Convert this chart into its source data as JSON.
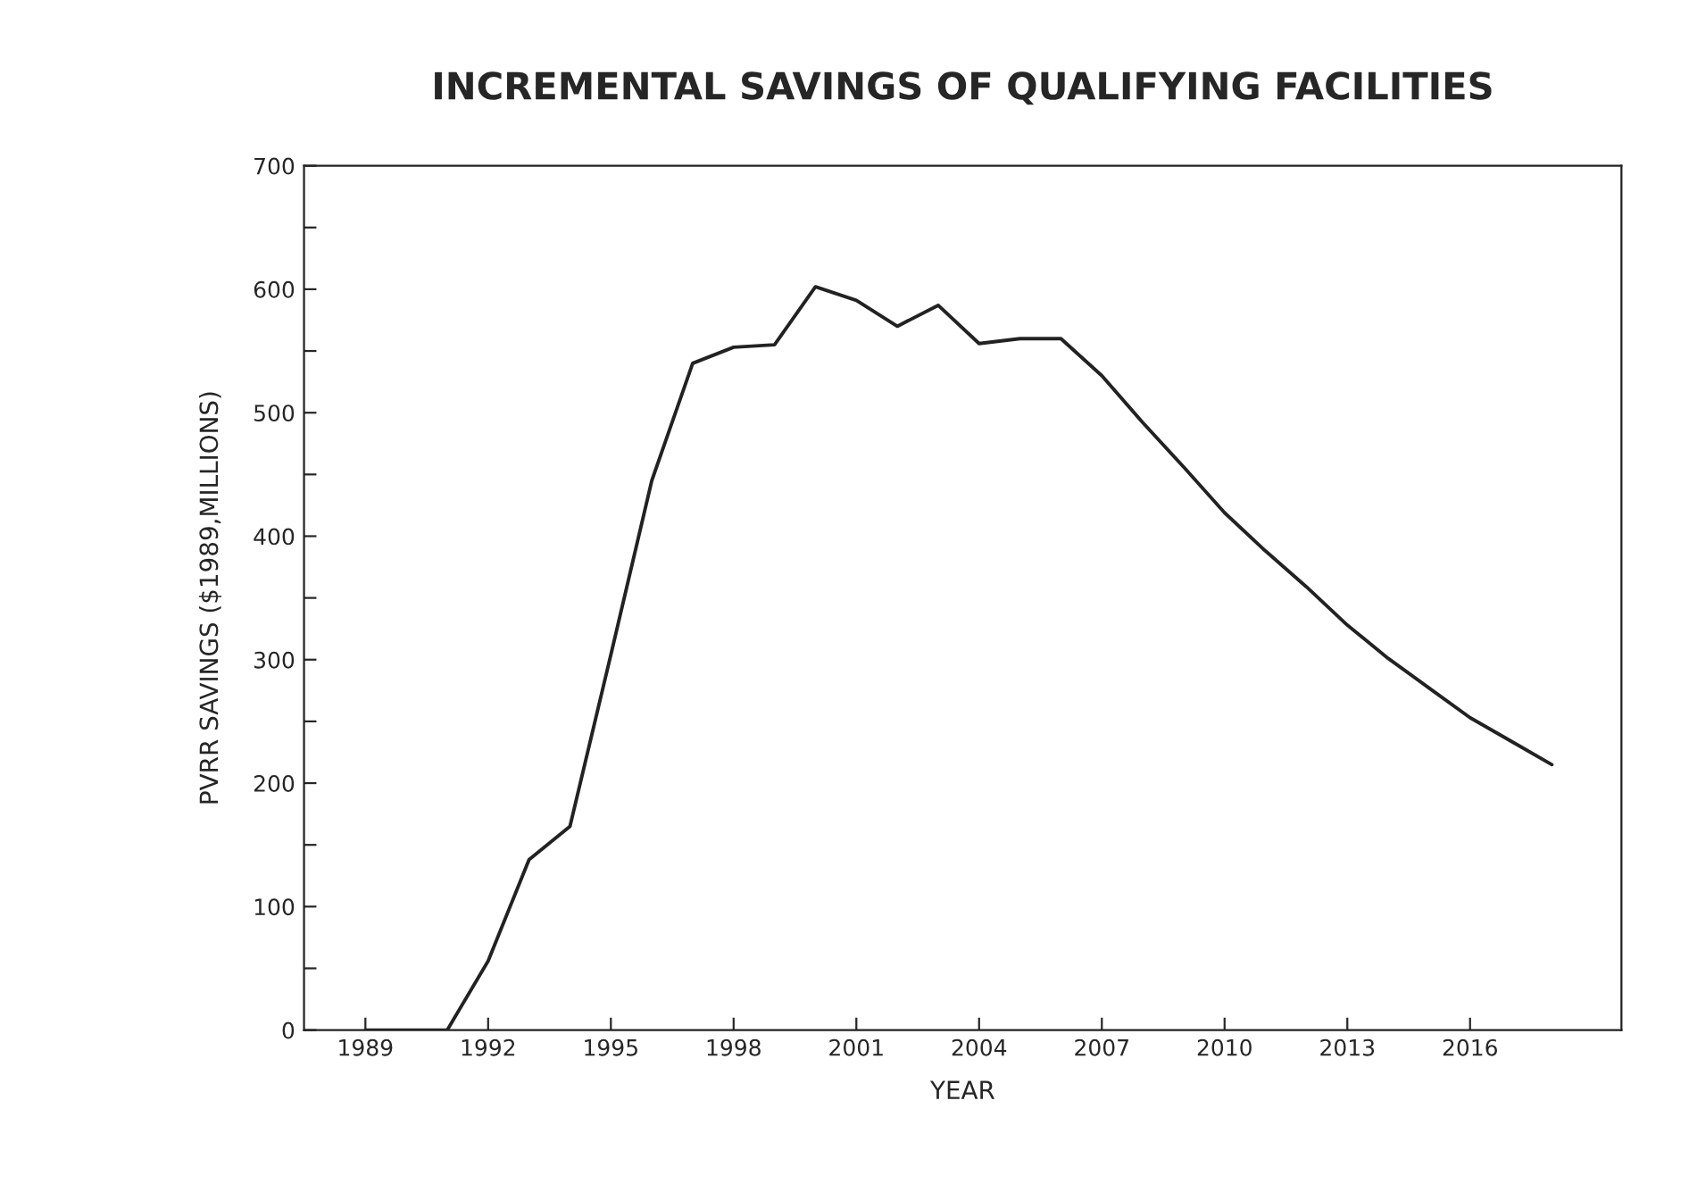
{
  "chart_data": {
    "type": "line",
    "title": "INCREMENTAL SAVINGS OF QUALIFYING FACILITIES",
    "xlabel": "YEAR",
    "ylabel": "PVRR SAVINGS ($1989,MILLIONS)",
    "x": [
      1989,
      1990,
      1991,
      1992,
      1993,
      1994,
      1995,
      1996,
      1997,
      1998,
      1999,
      2000,
      2001,
      2002,
      2003,
      2004,
      2005,
      2006,
      2007,
      2008,
      2009,
      2010,
      2011,
      2012,
      2013,
      2014,
      2015,
      2016,
      2017,
      2018
    ],
    "series": [
      {
        "color": "#222222",
        "values": [
          0,
          0,
          0,
          56,
          138,
          165,
          304,
          445,
          540,
          553,
          555,
          602,
          591,
          570,
          587,
          556,
          560,
          560,
          530,
          492,
          456,
          419,
          388,
          359,
          328,
          301,
          277,
          253,
          234,
          215
        ]
      }
    ],
    "xlim": [
      1987.5,
      2019.7
    ],
    "xticks": [
      1989,
      1992,
      1995,
      1998,
      2001,
      2004,
      2007,
      2010,
      2013,
      2016
    ],
    "ylim": [
      0,
      700
    ],
    "yticks": [
      0,
      {
        "value": 50,
        "label": null
      },
      100,
      {
        "value": 150,
        "label": null
      },
      200,
      {
        "value": 250,
        "label": null
      },
      300,
      {
        "value": 350,
        "label": null
      },
      400,
      {
        "value": 450,
        "label": null
      },
      500,
      {
        "value": 550,
        "label": null
      },
      600,
      {
        "value": 650,
        "label": null
      },
      700
    ],
    "grid": false,
    "legend": false,
    "marker": "none",
    "line_style": "solid"
  }
}
